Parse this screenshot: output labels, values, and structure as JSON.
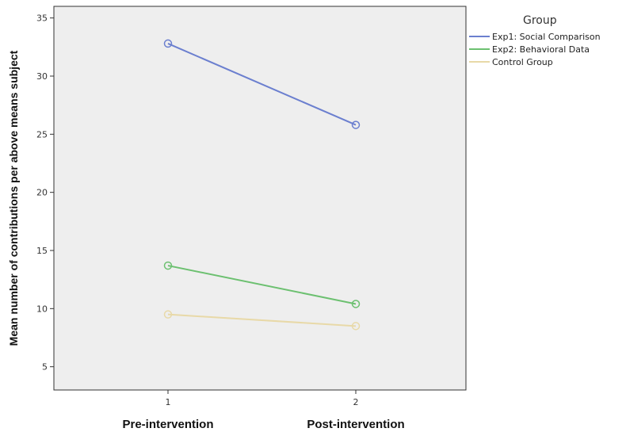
{
  "chart_data": {
    "type": "line",
    "ylabel": "Mean number of contributions per above means subject",
    "xticks": [
      "1",
      "2"
    ],
    "categories": [
      "Pre-intervention",
      "Post-intervention"
    ],
    "ylim": [
      3,
      36
    ],
    "yticks": [
      5,
      10,
      15,
      20,
      25,
      30,
      35
    ],
    "grid": false,
    "legend_title": "Group",
    "legend_position": "top-right, outside plot",
    "plot_background": "#eeeeee",
    "series": [
      {
        "name": "Exp1: Social Comparison",
        "color": "#6b7fcf",
        "values": [
          32.8,
          25.8
        ]
      },
      {
        "name": "Exp2: Behavioral Data",
        "color": "#6cc070",
        "values": [
          13.7,
          10.4
        ]
      },
      {
        "name": "Control Group",
        "color": "#e8d9a8",
        "values": [
          9.5,
          8.5
        ]
      }
    ]
  }
}
